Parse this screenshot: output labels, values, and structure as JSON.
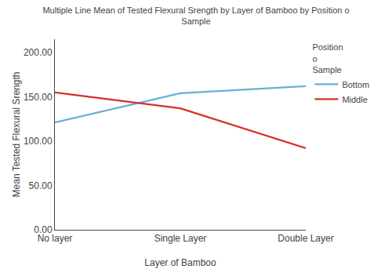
{
  "chart_data": {
    "type": "line",
    "title": "Multiple Line Mean of Tested Flexural Srength by Layer of Bamboo by Position o\nSample",
    "xlabel": "Layer of Bamboo",
    "ylabel": "Mean Tested Flexural Srength",
    "categories": [
      "No layer",
      "Single Layer",
      "Double Layer"
    ],
    "series": [
      {
        "name": "Bottom",
        "color": "#6baed6",
        "values": [
          121.0,
          154.0,
          162.0
        ]
      },
      {
        "name": "Middle",
        "color": "#d73027",
        "values": [
          155.0,
          137.0,
          92.0
        ]
      }
    ],
    "ylim": [
      0,
      215
    ],
    "yticks": [
      {
        "value": 0,
        "label": "0.00"
      },
      {
        "value": 50,
        "label": "50.00"
      },
      {
        "value": 100,
        "label": "100.00"
      },
      {
        "value": 150,
        "label": "150.00"
      },
      {
        "value": 200,
        "label": "200.00"
      }
    ],
    "legend_title": "Position\no\nSample",
    "legend": "upper right",
    "grid": false
  }
}
